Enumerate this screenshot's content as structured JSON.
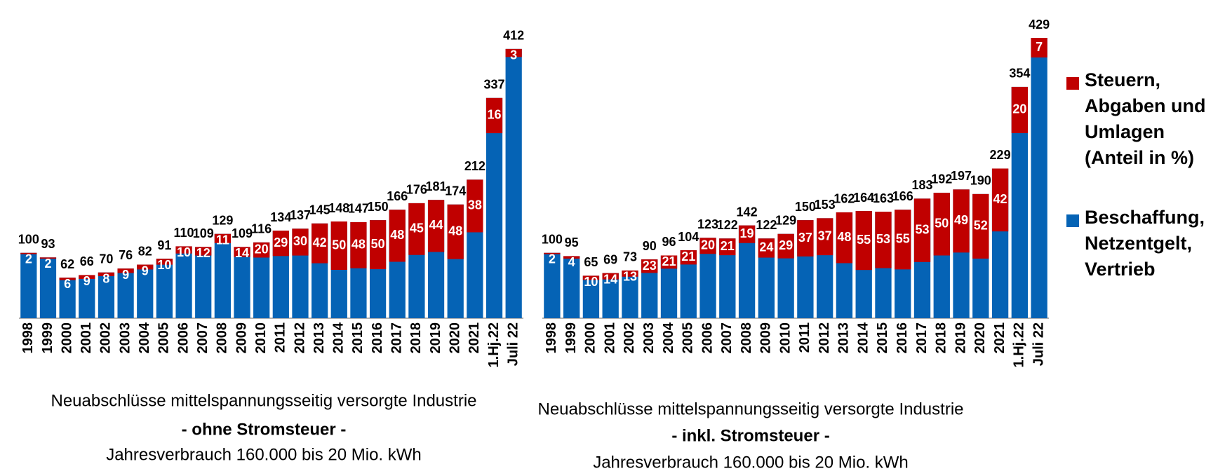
{
  "legend": [
    {
      "name": "Steuern, Abgaben und Umlagen (Anteil in %)",
      "color": "#c00000"
    },
    {
      "name": "Beschaffung, Netzentgelt, Vertrieb",
      "color": "#0563b5"
    }
  ],
  "chart_data": [
    {
      "type": "bar",
      "categories": [
        "1998",
        "1999",
        "2000",
        "2001",
        "2002",
        "2003",
        "2004",
        "2005",
        "2006",
        "2007",
        "2008",
        "2009",
        "2010",
        "2011",
        "2012",
        "2013",
        "2014",
        "2015",
        "2016",
        "2017",
        "2018",
        "2019",
        "2020",
        "2021",
        "1.Hj.22",
        "Juli 22"
      ],
      "totals": [
        100,
        93,
        62,
        66,
        70,
        76,
        82,
        91,
        110,
        109,
        129,
        109,
        116,
        134,
        137,
        145,
        148,
        147,
        150,
        166,
        176,
        181,
        174,
        212,
        337,
        412
      ],
      "shares": [
        2,
        2,
        6,
        9,
        8,
        9,
        9,
        10,
        10,
        12,
        11,
        14,
        20,
        29,
        30,
        42,
        50,
        48,
        50,
        48,
        45,
        44,
        48,
        38,
        16,
        3
      ],
      "captions": [
        "Neuabschlüsse mittelspannungsseitig versorgte Industrie",
        "- ohne Stromsteuer -",
        "Jahresverbrauch 160.000 bis 20 Mio. kWh"
      ]
    },
    {
      "type": "bar",
      "categories": [
        "1998",
        "1999",
        "2000",
        "2001",
        "2002",
        "2003",
        "2004",
        "2005",
        "2006",
        "2007",
        "2008",
        "2009",
        "2010",
        "2011",
        "2012",
        "2013",
        "2014",
        "2015",
        "2016",
        "2017",
        "2018",
        "2019",
        "2020",
        "2021",
        "1.Hj.22",
        "Juli 22"
      ],
      "totals": [
        100,
        95,
        65,
        69,
        73,
        90,
        96,
        104,
        123,
        122,
        142,
        122,
        129,
        150,
        153,
        162,
        164,
        163,
        166,
        183,
        192,
        197,
        190,
        229,
        354,
        429
      ],
      "shares": [
        2,
        4,
        10,
        14,
        13,
        23,
        21,
        21,
        20,
        21,
        19,
        24,
        29,
        37,
        37,
        48,
        55,
        53,
        55,
        53,
        50,
        49,
        52,
        42,
        20,
        7
      ],
      "captions": [
        "Neuabschlüsse mittelspannungsseitig versorgte Industrie",
        "- inkl. Stromsteuer -",
        "Jahresverbrauch 160.000 bis 20 Mio. kWh"
      ]
    }
  ]
}
